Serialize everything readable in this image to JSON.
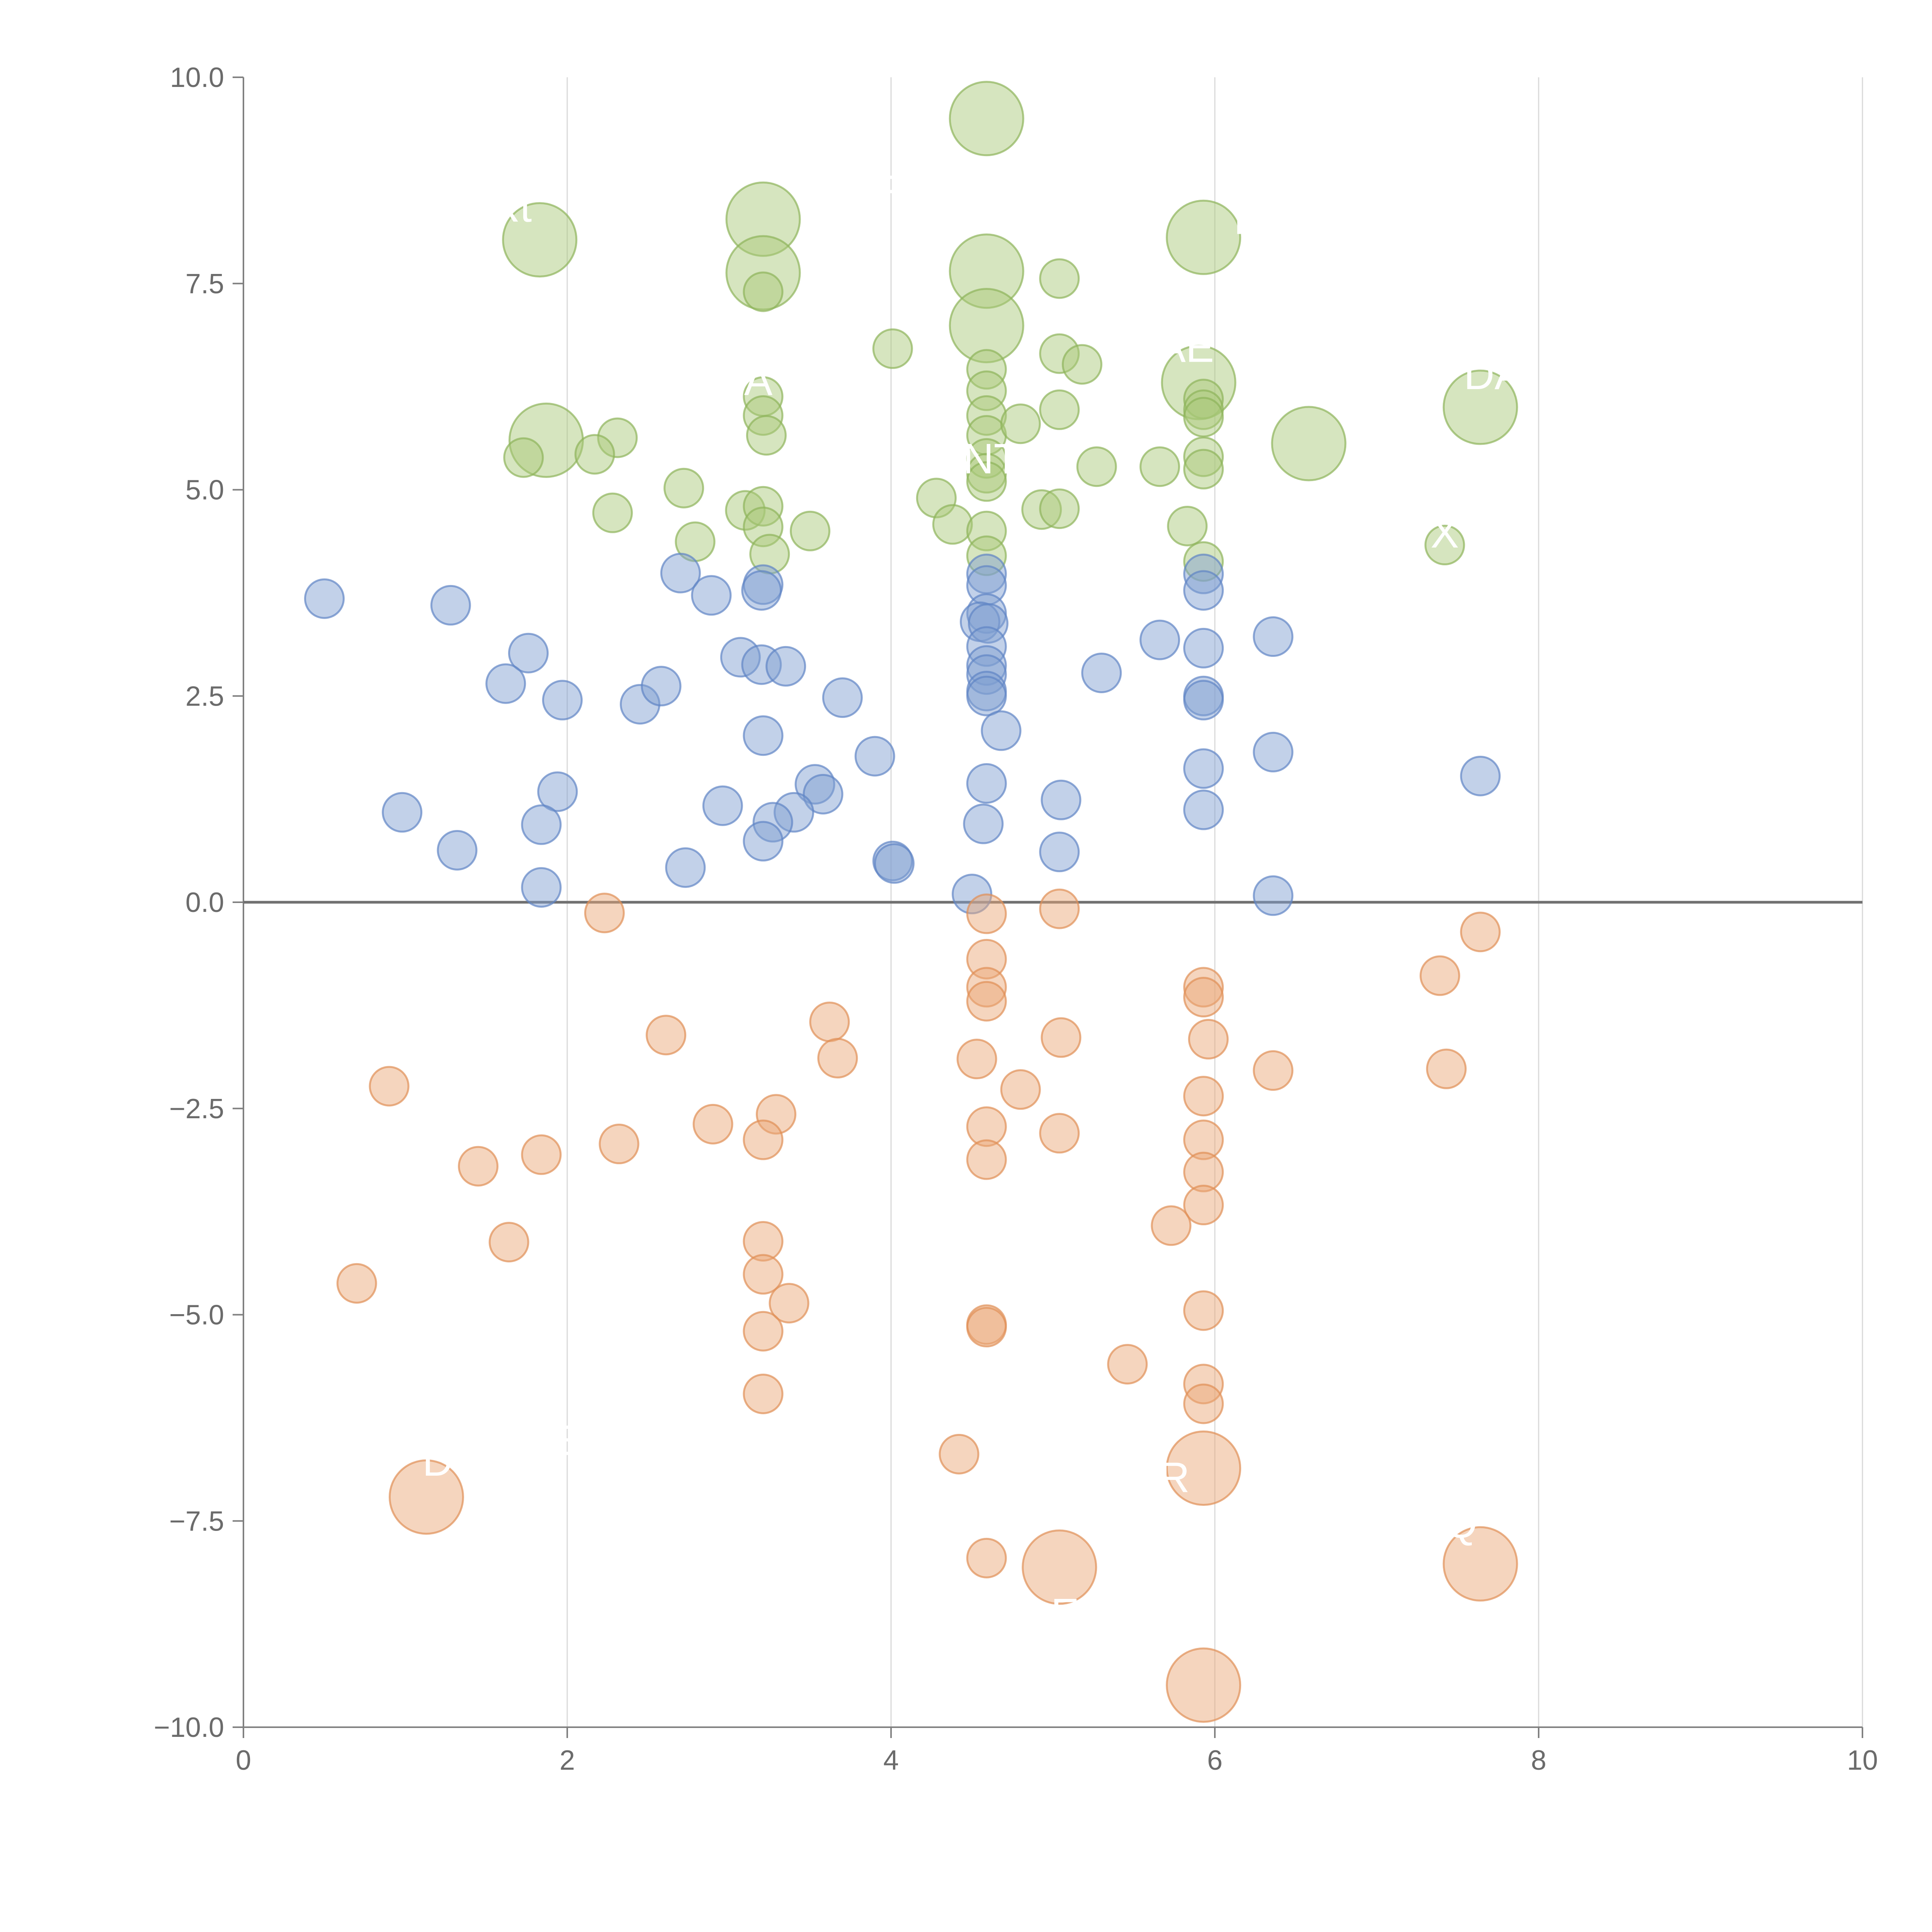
{
  "chart_data": {
    "type": "scatter",
    "title": "",
    "xlabel": "",
    "ylabel": "",
    "xlim": [
      0,
      10
    ],
    "ylim": [
      -10,
      10
    ],
    "x_ticks": [
      0,
      2,
      4,
      6,
      8,
      10
    ],
    "x_tick_labels": [
      "0",
      "2",
      "4",
      "6",
      "8",
      "10"
    ],
    "y_ticks": [
      10,
      7.5,
      5,
      2.5,
      0,
      -2.5,
      -5,
      -7.5,
      -10
    ],
    "y_tick_labels": [
      "10.0",
      "7.5",
      "5.0",
      "2.5",
      "0.0",
      "−2.5",
      "−5.0",
      "−7.5",
      "−10.0"
    ],
    "grid": "vertical",
    "zero_line": true,
    "colors": {
      "green_fill": "#a9c97a",
      "green_stroke": "#8db35a",
      "blue_fill": "#7f9fd0",
      "blue_stroke": "#5f85c4",
      "orange_fill": "#eba777",
      "orange_stroke": "#df8f55",
      "axis": "#808080",
      "grid": "#d9d9d9"
    },
    "series": [
      {
        "name": "green",
        "color_key": "green",
        "points": [
          {
            "x": 4.59,
            "y": 9.5,
            "s": 44
          },
          {
            "x": 1.83,
            "y": 8.03,
            "s": 44
          },
          {
            "x": 3.21,
            "y": 8.28,
            "s": 44
          },
          {
            "x": 3.21,
            "y": 7.63,
            "s": 44
          },
          {
            "x": 4.59,
            "y": 7.65,
            "s": 44
          },
          {
            "x": 5.93,
            "y": 8.06,
            "s": 44
          },
          {
            "x": 4.59,
            "y": 6.99,
            "s": 44
          },
          {
            "x": 5.9,
            "y": 6.3,
            "s": 44
          },
          {
            "x": 1.87,
            "y": 5.6,
            "s": 44
          },
          {
            "x": 6.58,
            "y": 5.56,
            "s": 44
          },
          {
            "x": 7.64,
            "y": 6.0,
            "s": 44
          },
          {
            "x": 3.21,
            "y": 7.4,
            "s": 20
          },
          {
            "x": 4.01,
            "y": 6.71,
            "s": 20
          },
          {
            "x": 5.04,
            "y": 7.56,
            "s": 20
          },
          {
            "x": 5.04,
            "y": 6.65,
            "s": 20
          },
          {
            "x": 5.18,
            "y": 6.52,
            "s": 20
          },
          {
            "x": 4.59,
            "y": 6.46,
            "s": 20
          },
          {
            "x": 4.59,
            "y": 6.2,
            "s": 20
          },
          {
            "x": 4.59,
            "y": 5.9,
            "s": 20
          },
          {
            "x": 4.59,
            "y": 5.66,
            "s": 20
          },
          {
            "x": 4.59,
            "y": 5.38,
            "s": 20
          },
          {
            "x": 4.59,
            "y": 5.2,
            "s": 20
          },
          {
            "x": 4.59,
            "y": 5.1,
            "s": 20
          },
          {
            "x": 4.8,
            "y": 5.8,
            "s": 20
          },
          {
            "x": 5.04,
            "y": 5.97,
            "s": 20
          },
          {
            "x": 3.21,
            "y": 6.13,
            "s": 20
          },
          {
            "x": 3.21,
            "y": 5.9,
            "s": 20
          },
          {
            "x": 3.23,
            "y": 5.66,
            "s": 20
          },
          {
            "x": 2.31,
            "y": 5.63,
            "s": 20
          },
          {
            "x": 2.17,
            "y": 5.43,
            "s": 20
          },
          {
            "x": 1.73,
            "y": 5.39,
            "s": 20
          },
          {
            "x": 2.72,
            "y": 5.02,
            "s": 20
          },
          {
            "x": 2.28,
            "y": 4.72,
            "s": 20
          },
          {
            "x": 2.79,
            "y": 4.37,
            "s": 20
          },
          {
            "x": 3.1,
            "y": 4.75,
            "s": 20
          },
          {
            "x": 3.21,
            "y": 4.8,
            "s": 20
          },
          {
            "x": 3.21,
            "y": 4.55,
            "s": 20
          },
          {
            "x": 3.25,
            "y": 4.22,
            "s": 20
          },
          {
            "x": 3.5,
            "y": 4.5,
            "s": 20
          },
          {
            "x": 4.28,
            "y": 4.9,
            "s": 20
          },
          {
            "x": 4.38,
            "y": 4.58,
            "s": 20
          },
          {
            "x": 4.59,
            "y": 4.5,
            "s": 20
          },
          {
            "x": 4.59,
            "y": 4.2,
            "s": 20
          },
          {
            "x": 4.93,
            "y": 4.76,
            "s": 20
          },
          {
            "x": 5.04,
            "y": 4.77,
            "s": 20
          },
          {
            "x": 5.27,
            "y": 5.28,
            "s": 20
          },
          {
            "x": 5.66,
            "y": 5.28,
            "s": 20
          },
          {
            "x": 5.93,
            "y": 6.1,
            "s": 20
          },
          {
            "x": 5.93,
            "y": 5.97,
            "s": 20
          },
          {
            "x": 5.93,
            "y": 5.88,
            "s": 20
          },
          {
            "x": 5.93,
            "y": 5.4,
            "s": 20
          },
          {
            "x": 5.93,
            "y": 5.25,
            "s": 20
          },
          {
            "x": 5.83,
            "y": 4.56,
            "s": 20
          },
          {
            "x": 5.93,
            "y": 4.13,
            "s": 20
          },
          {
            "x": 7.42,
            "y": 4.33,
            "s": 20
          }
        ]
      },
      {
        "name": "blue",
        "color_key": "blue",
        "points": [
          {
            "x": 0.5,
            "y": 3.68,
            "s": 20
          },
          {
            "x": 1.28,
            "y": 3.6,
            "s": 20
          },
          {
            "x": 1.76,
            "y": 3.02,
            "s": 20
          },
          {
            "x": 1.62,
            "y": 2.65,
            "s": 20
          },
          {
            "x": 1.97,
            "y": 2.45,
            "s": 20
          },
          {
            "x": 2.45,
            "y": 2.4,
            "s": 20
          },
          {
            "x": 2.58,
            "y": 2.62,
            "s": 20
          },
          {
            "x": 2.7,
            "y": 3.99,
            "s": 20
          },
          {
            "x": 2.89,
            "y": 3.72,
            "s": 20
          },
          {
            "x": 3.07,
            "y": 2.97,
            "s": 20
          },
          {
            "x": 3.21,
            "y": 3.85,
            "s": 20
          },
          {
            "x": 3.2,
            "y": 3.78,
            "s": 20
          },
          {
            "x": 3.2,
            "y": 2.88,
            "s": 20
          },
          {
            "x": 3.35,
            "y": 2.86,
            "s": 20
          },
          {
            "x": 3.7,
            "y": 2.48,
            "s": 20
          },
          {
            "x": 3.21,
            "y": 2.02,
            "s": 20
          },
          {
            "x": 3.9,
            "y": 1.77,
            "s": 20
          },
          {
            "x": 3.53,
            "y": 1.43,
            "s": 20
          },
          {
            "x": 3.58,
            "y": 1.31,
            "s": 20
          },
          {
            "x": 3.4,
            "y": 1.09,
            "s": 20
          },
          {
            "x": 3.27,
            "y": 0.97,
            "s": 20
          },
          {
            "x": 3.21,
            "y": 0.74,
            "s": 20
          },
          {
            "x": 2.96,
            "y": 1.17,
            "s": 20
          },
          {
            "x": 2.73,
            "y": 0.42,
            "s": 20
          },
          {
            "x": 1.94,
            "y": 1.34,
            "s": 20
          },
          {
            "x": 1.84,
            "y": 0.94,
            "s": 20
          },
          {
            "x": 1.84,
            "y": 0.18,
            "s": 20
          },
          {
            "x": 0.98,
            "y": 1.09,
            "s": 20
          },
          {
            "x": 1.32,
            "y": 0.63,
            "s": 20
          },
          {
            "x": 4.01,
            "y": 0.5,
            "s": 20
          },
          {
            "x": 4.02,
            "y": 0.47,
            "s": 20
          },
          {
            "x": 4.5,
            "y": 0.1,
            "s": 20
          },
          {
            "x": 4.59,
            "y": 3.98,
            "s": 20
          },
          {
            "x": 4.59,
            "y": 3.84,
            "s": 20
          },
          {
            "x": 4.59,
            "y": 3.5,
            "s": 20
          },
          {
            "x": 4.55,
            "y": 3.4,
            "s": 20
          },
          {
            "x": 4.6,
            "y": 3.38,
            "s": 20
          },
          {
            "x": 4.59,
            "y": 3.1,
            "s": 20
          },
          {
            "x": 4.59,
            "y": 2.87,
            "s": 20
          },
          {
            "x": 4.59,
            "y": 2.76,
            "s": 20
          },
          {
            "x": 4.59,
            "y": 2.56,
            "s": 20
          },
          {
            "x": 4.59,
            "y": 2.5,
            "s": 20
          },
          {
            "x": 4.68,
            "y": 2.08,
            "s": 20
          },
          {
            "x": 4.59,
            "y": 1.44,
            "s": 20
          },
          {
            "x": 4.57,
            "y": 0.95,
            "s": 20
          },
          {
            "x": 5.05,
            "y": 1.24,
            "s": 20
          },
          {
            "x": 5.04,
            "y": 0.61,
            "s": 20
          },
          {
            "x": 5.3,
            "y": 2.78,
            "s": 20
          },
          {
            "x": 5.66,
            "y": 3.18,
            "s": 20
          },
          {
            "x": 5.93,
            "y": 3.98,
            "s": 20
          },
          {
            "x": 5.93,
            "y": 3.78,
            "s": 20
          },
          {
            "x": 5.93,
            "y": 3.08,
            "s": 20
          },
          {
            "x": 5.93,
            "y": 2.5,
            "s": 20
          },
          {
            "x": 5.93,
            "y": 2.45,
            "s": 20
          },
          {
            "x": 5.93,
            "y": 1.62,
            "s": 20
          },
          {
            "x": 5.93,
            "y": 1.12,
            "s": 20
          },
          {
            "x": 6.36,
            "y": 3.22,
            "s": 20
          },
          {
            "x": 6.36,
            "y": 1.82,
            "s": 20
          },
          {
            "x": 6.36,
            "y": 0.08,
            "s": 20
          },
          {
            "x": 7.64,
            "y": 1.53,
            "s": 20
          }
        ]
      },
      {
        "name": "orange",
        "color_key": "orange",
        "points": [
          {
            "x": 2.23,
            "y": -0.13,
            "s": 20
          },
          {
            "x": 4.59,
            "y": -0.14,
            "s": 20
          },
          {
            "x": 5.04,
            "y": -0.08,
            "s": 20
          },
          {
            "x": 7.64,
            "y": -0.36,
            "s": 20
          },
          {
            "x": 4.59,
            "y": -0.69,
            "s": 20
          },
          {
            "x": 4.59,
            "y": -1.03,
            "s": 20
          },
          {
            "x": 4.59,
            "y": -1.2,
            "s": 20
          },
          {
            "x": 7.39,
            "y": -0.89,
            "s": 20
          },
          {
            "x": 5.93,
            "y": -1.03,
            "s": 20
          },
          {
            "x": 5.93,
            "y": -1.15,
            "s": 20
          },
          {
            "x": 5.96,
            "y": -1.66,
            "s": 20
          },
          {
            "x": 6.36,
            "y": -2.04,
            "s": 20
          },
          {
            "x": 7.43,
            "y": -2.02,
            "s": 20
          },
          {
            "x": 2.61,
            "y": -1.61,
            "s": 20
          },
          {
            "x": 3.62,
            "y": -1.45,
            "s": 20
          },
          {
            "x": 3.67,
            "y": -1.89,
            "s": 20
          },
          {
            "x": 4.53,
            "y": -1.9,
            "s": 20
          },
          {
            "x": 5.05,
            "y": -1.64,
            "s": 20
          },
          {
            "x": 4.8,
            "y": -2.27,
            "s": 20
          },
          {
            "x": 0.9,
            "y": -2.23,
            "s": 20
          },
          {
            "x": 2.32,
            "y": -2.93,
            "s": 20
          },
          {
            "x": 2.9,
            "y": -2.69,
            "s": 20
          },
          {
            "x": 3.29,
            "y": -2.57,
            "s": 20
          },
          {
            "x": 3.21,
            "y": -2.88,
            "s": 20
          },
          {
            "x": 1.45,
            "y": -3.2,
            "s": 20
          },
          {
            "x": 1.84,
            "y": -3.06,
            "s": 20
          },
          {
            "x": 1.64,
            "y": -4.12,
            "s": 20
          },
          {
            "x": 0.7,
            "y": -4.62,
            "s": 20
          },
          {
            "x": 3.21,
            "y": -4.11,
            "s": 20
          },
          {
            "x": 3.21,
            "y": -4.51,
            "s": 20
          },
          {
            "x": 3.37,
            "y": -4.86,
            "s": 20
          },
          {
            "x": 3.21,
            "y": -5.2,
            "s": 20
          },
          {
            "x": 3.21,
            "y": -5.96,
            "s": 20
          },
          {
            "x": 4.59,
            "y": -2.72,
            "s": 20
          },
          {
            "x": 4.59,
            "y": -3.12,
            "s": 20
          },
          {
            "x": 5.04,
            "y": -2.8,
            "s": 20
          },
          {
            "x": 5.93,
            "y": -2.35,
            "s": 20
          },
          {
            "x": 5.93,
            "y": -2.88,
            "s": 20
          },
          {
            "x": 5.93,
            "y": -3.27,
            "s": 20
          },
          {
            "x": 5.93,
            "y": -3.67,
            "s": 20
          },
          {
            "x": 5.73,
            "y": -3.92,
            "s": 20
          },
          {
            "x": 5.93,
            "y": -4.95,
            "s": 20
          },
          {
            "x": 4.59,
            "y": -5.12,
            "s": 20
          },
          {
            "x": 4.59,
            "y": -5.15,
            "s": 20
          },
          {
            "x": 5.46,
            "y": -5.6,
            "s": 20
          },
          {
            "x": 5.93,
            "y": -5.84,
            "s": 20
          },
          {
            "x": 5.93,
            "y": -6.08,
            "s": 20
          },
          {
            "x": 4.42,
            "y": -6.69,
            "s": 20
          },
          {
            "x": 4.59,
            "y": -7.95,
            "s": 20
          },
          {
            "x": 1.13,
            "y": -7.21,
            "s": 44
          },
          {
            "x": 5.93,
            "y": -6.86,
            "s": 44
          },
          {
            "x": 5.04,
            "y": -8.06,
            "s": 44
          },
          {
            "x": 7.64,
            "y": -8.02,
            "s": 44
          },
          {
            "x": 5.93,
            "y": -9.49,
            "s": 44
          }
        ]
      }
    ],
    "annotations": [
      {
        "text": "Rt",
        "x": 1.65,
        "y": 8.25
      },
      {
        "text": "F",
        "x": 4.0,
        "y": 8.45
      },
      {
        "text": "A",
        "x": 3.18,
        "y": 6.15
      },
      {
        "text": "NT",
        "x": 4.62,
        "y": 5.2
      },
      {
        "text": "l",
        "x": 6.15,
        "y": 8.1
      },
      {
        "text": "AE",
        "x": 5.82,
        "y": 6.55
      },
      {
        "text": "DA",
        "x": 7.72,
        "y": 6.22
      },
      {
        "text": "X",
        "x": 7.42,
        "y": 4.3
      },
      {
        "text": "D",
        "x": 1.2,
        "y": -6.95
      },
      {
        "text": "LE",
        "x": 1.95,
        "y": -6.7
      },
      {
        "text": "R",
        "x": 5.75,
        "y": -7.15
      },
      {
        "text": "Q",
        "x": 7.52,
        "y": -7.7
      },
      {
        "text": "DE",
        "x": 4.98,
        "y": -8.8
      }
    ]
  }
}
